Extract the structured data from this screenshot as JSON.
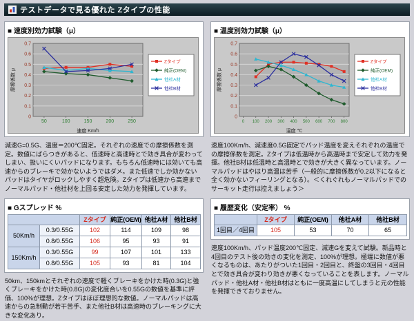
{
  "colors": {
    "accent_red": "#d42a1e",
    "titlebar_bg": "#15262c",
    "table_header_bg": "#c9d5ea"
  },
  "page": {
    "title_bar": "テストデータで見る優れた Zタイプの性能"
  },
  "left": {
    "chart_title": "■ 速度別効力試験（μ）",
    "desc": "減速G=0.5G、温度＝200℃固定。それぞれの速度での摩擦係数を測定。数値にばらつきがあると、低速時と高速時とで効き具合が変わってしまい、扱いにくいパッドになります。もちろん低速時には効いても高速からのブレーキで効かないようではダメ。また低速でしか効かないパッドはタイヤがロックしやすく超危険。Zタイプは低速から高速までノーマルパッド・他社材を上回る安定した効力を発揮しています。",
    "table_title": "■ Gスプレッド %",
    "table": {
      "col_headers": [
        "Zタイプ",
        "純正(OEM)",
        "他社A材",
        "他社B材"
      ],
      "groups": [
        {
          "speed": "50Km/h",
          "rows": [
            {
              "g": "0.3/0.55G",
              "values": [
                102,
                114,
                109,
                98
              ]
            },
            {
              "g": "0.8/0.55G",
              "values": [
                106,
                95,
                93,
                91
              ]
            }
          ]
        },
        {
          "speed": "150Km/h",
          "rows": [
            {
              "g": "0.3/0.55G",
              "values": [
                99,
                107,
                101,
                133
              ]
            },
            {
              "g": "0.8/0.55G",
              "values": [
                105,
                93,
                81,
                104
              ]
            }
          ]
        }
      ]
    },
    "desc2": "50km、150kmとそれぞれの速度で軽くブレーキをかけた時(0.3G)と強くブレーキをかけた時(0.8G)の変化度合いを0.55Gの数値を基準に評価、100%が理想。Zタイプはほぼ理想的な数値。ノーマルパッドは高速からの急制動が若干苦手、また他社B材は高速時のブレーキングに大きな変化あり。"
  },
  "right": {
    "chart_title": "■ 温度別効力試験（μ）",
    "desc": "速度100Km/h、減速度0.5G固定でパッド温度を変えそれぞれの温度での摩擦係数を測定。Zタイプは低温時から高温時まで安定して効力を発揮。他社B材は低温時と高温時とで効きが大きく異なっています。ノーマルパッドはやはり高温は苦手（一般的に摩擦係数が0.2以下になると全く効かないフィーリングとなる）。＜くれぐれもノーマルパッドでのサーキット走行は控えましょう＞",
    "table_title": "■ 履歴変化（安定率） %",
    "table": {
      "col_headers": [
        "Zタイプ",
        "純正(OEM)",
        "他社A材",
        "他社B材"
      ],
      "row_label": "1回目／4回目",
      "values": [
        105,
        53,
        70,
        65
      ]
    },
    "desc2": "速度100Km/h、パッド温度200℃固定、減速Gを変えて試験。新品時と4回目のテスト後の効きの変化を測定、100%が理想。極端に数値が悪くなるものは、あたりがついた1回目・2回目と、終盤の3回目・4回目とで効き具合が変わり効きが悪くなっていることを表します。ノーマルパッド・他社A材・他社B材はともに一度高温にしてしまうと元の性能を発揮できておりません。"
  },
  "chart_data": [
    {
      "type": "line",
      "title": "速度別効力試験（μ）",
      "x": [
        50,
        100,
        150,
        200,
        250
      ],
      "xdomain": [
        25,
        275
      ],
      "xticks": [
        50,
        100,
        150,
        200,
        250
      ],
      "xlabel": "速度 Km/h",
      "ylabel": "摩擦係数 μ",
      "ylim": [
        0,
        0.7
      ],
      "yticks": [
        0,
        0.1,
        0.2,
        0.3,
        0.4,
        0.5,
        0.6,
        0.7
      ],
      "xtick_color": "#2e7d32",
      "ytick_color": "#9a3a28",
      "legend_position": "right",
      "grid": true,
      "series": [
        {
          "name": "Zタイプ",
          "color": "#e03024",
          "marker": "square",
          "values": [
            0.46,
            0.47,
            0.47,
            0.5,
            0.48
          ]
        },
        {
          "name": "純正(OEM)",
          "color": "#1f5b2d",
          "marker": "diamond",
          "values": [
            0.43,
            0.41,
            0.4,
            0.37,
            0.34
          ]
        },
        {
          "name": "他社A材",
          "color": "#2fb6d0",
          "marker": "triangle",
          "values": [
            0.47,
            0.44,
            0.46,
            0.44,
            0.43
          ]
        },
        {
          "name": "他社B材",
          "color": "#2b2f9e",
          "marker": "x",
          "values": [
            0.65,
            0.43,
            0.44,
            0.46,
            0.5
          ]
        }
      ]
    },
    {
      "type": "line",
      "title": "温度別効力試験（μ）",
      "x": [
        100,
        200,
        300,
        400,
        500,
        600,
        700,
        800
      ],
      "xdomain": [
        -30,
        840
      ],
      "xticks": [
        0,
        100,
        200,
        300,
        400,
        500,
        600,
        700,
        800
      ],
      "xlabel": "温度 ℃",
      "ylabel": "摩擦係数 μ",
      "ylim": [
        0,
        0.7
      ],
      "yticks": [
        0,
        0.1,
        0.2,
        0.3,
        0.4,
        0.5,
        0.6,
        0.7
      ],
      "xtick_color": "#2e7d32",
      "ytick_color": "#9a3a28",
      "legend_position": "right",
      "grid": true,
      "series": [
        {
          "name": "Zタイプ",
          "color": "#e03024",
          "marker": "square",
          "values": [
            0.38,
            0.5,
            0.52,
            0.52,
            0.51,
            0.5,
            0.48,
            0.43
          ]
        },
        {
          "name": "純正(OEM)",
          "color": "#1f5b2d",
          "marker": "diamond",
          "values": [
            0.44,
            0.48,
            0.45,
            0.38,
            0.3,
            0.22,
            0.16,
            0.12
          ]
        },
        {
          "name": "他社A材",
          "color": "#2fb6d0",
          "marker": "triangle",
          "values": [
            0.55,
            0.52,
            0.49,
            0.45,
            0.4,
            0.34,
            0.3,
            0.28
          ]
        },
        {
          "name": "他社B材",
          "color": "#2b2f9e",
          "marker": "x",
          "values": [
            0.3,
            0.37,
            0.52,
            0.6,
            0.57,
            0.49,
            0.4,
            0.34
          ]
        }
      ]
    }
  ]
}
